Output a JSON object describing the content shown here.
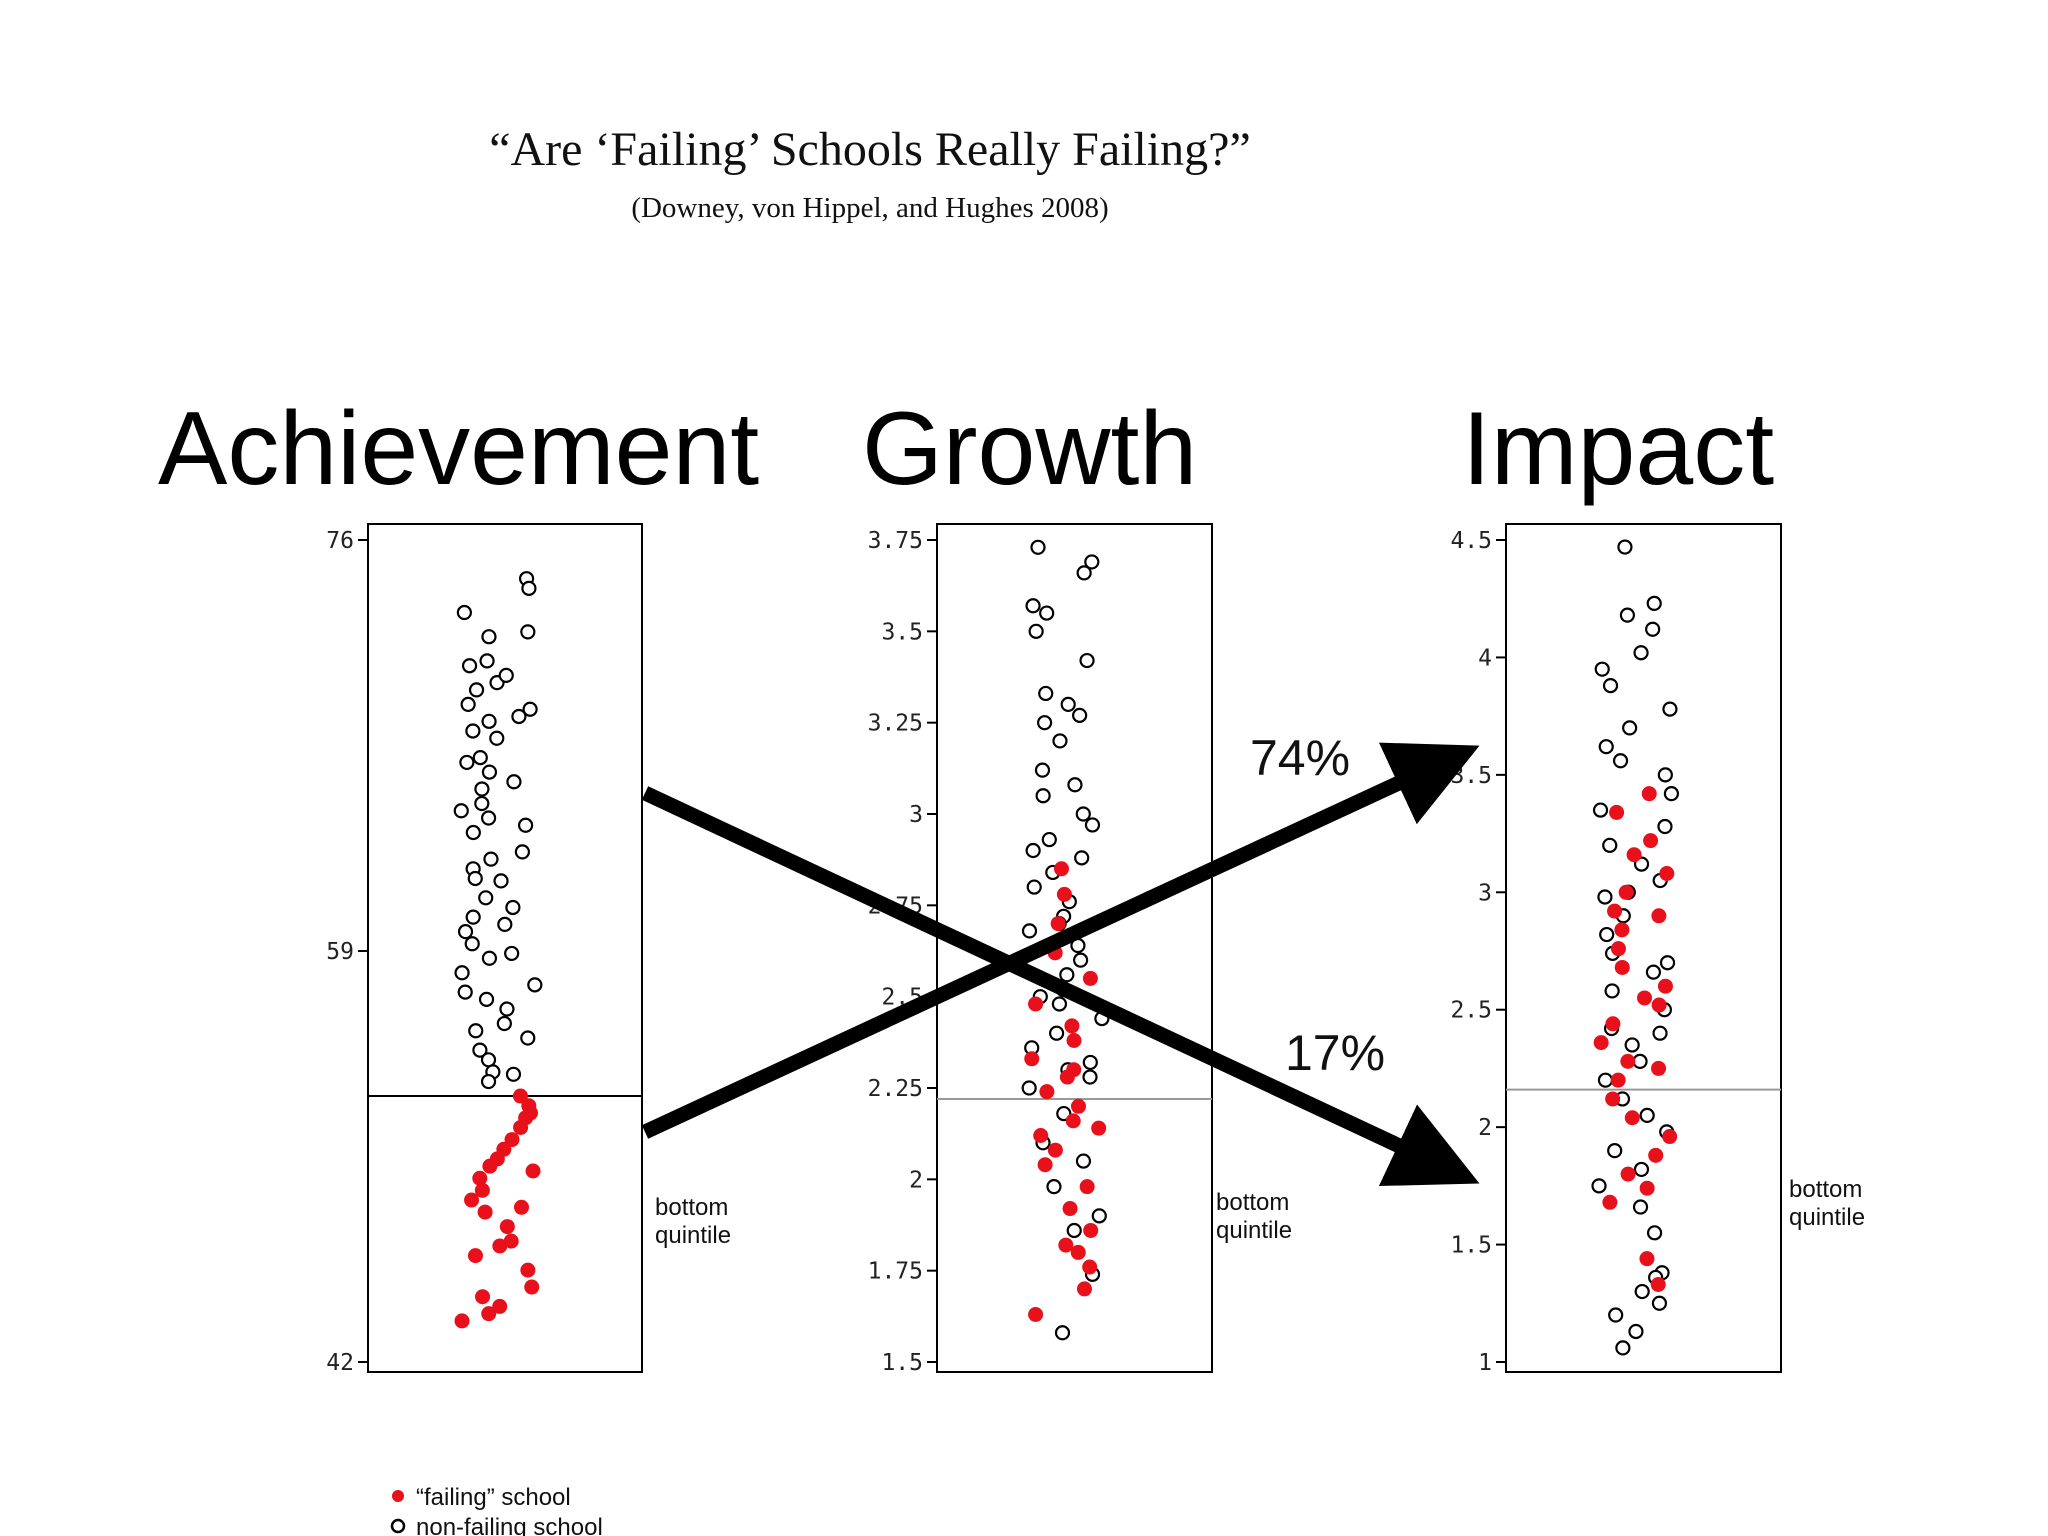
{
  "title": "“Are ‘Failing’ Schools Really Failing?”",
  "citation": "(Downey, von Hippel, and Hughes 2008)",
  "colors": {
    "failing": "#e8101a",
    "nonfailing": "#000000",
    "cutoff_black": "#000000",
    "cutoff_gray": "#999999"
  },
  "legend": {
    "failing": "“failing” school",
    "nonfailing": "non-failing school"
  },
  "arrows": {
    "top_label": "74%",
    "bottom_label": "17%"
  },
  "chart_data": [
    {
      "type": "scatter",
      "title": "Achievement",
      "ylim": [
        42,
        76
      ],
      "yticks": [
        42,
        59,
        76
      ],
      "ytick_labels": [
        "42",
        "59",
        "76"
      ],
      "cutoff": 53,
      "cutoff_label": [
        "bottom",
        "quintile"
      ],
      "series": [
        {
          "name": "non-failing school",
          "kind": "nonfailing",
          "y": [
            74.4,
            74.0,
            73.0,
            72.0,
            72.2,
            70.8,
            71.0,
            70.1,
            70.4,
            69.8,
            69.2,
            69.0,
            68.5,
            68.1,
            67.8,
            67.0,
            66.8,
            66.0,
            65.7,
            65.1,
            64.8,
            64.2,
            63.9,
            63.1,
            62.8,
            62.4,
            61.9,
            61.2,
            60.8,
            60.1,
            59.8,
            59.3,
            58.7,
            58.1,
            57.6,
            57.0,
            56.6,
            56.0,
            55.4,
            54.9,
            54.5,
            54.0,
            53.6,
            68.7,
            66.4,
            64.5,
            62.0,
            60.4,
            58.9,
            57.3,
            55.7,
            53.9
          ]
        },
        {
          "name": "“failing” school",
          "kind": "failing",
          "y": [
            53.0,
            52.6,
            52.1,
            51.7,
            51.2,
            50.8,
            50.4,
            49.9,
            49.6,
            49.1,
            48.7,
            48.2,
            47.6,
            47.0,
            46.4,
            45.8,
            45.1,
            44.7,
            44.3,
            44.0,
            43.7,
            52.3,
            50.1,
            48.4,
            46.8
          ]
        }
      ]
    },
    {
      "type": "scatter",
      "title": "Growth",
      "ylim": [
        1.5,
        3.75
      ],
      "yticks": [
        1.5,
        1.75,
        2,
        2.25,
        2.5,
        2.75,
        3,
        3.25,
        3.5,
        3.75
      ],
      "ytick_labels": [
        "1.5",
        "1.75",
        "2",
        "2.25",
        "2.5",
        "2.75",
        "3",
        "3.25",
        "3.5",
        "3.75"
      ],
      "cutoff": 2.22,
      "cutoff_label": [
        "bottom",
        "quintile"
      ],
      "series": [
        {
          "name": "non-failing school",
          "kind": "nonfailing",
          "y": [
            3.73,
            3.69,
            3.66,
            3.57,
            3.55,
            3.5,
            3.42,
            3.33,
            3.3,
            3.27,
            3.25,
            3.2,
            3.12,
            3.08,
            3.05,
            3.0,
            2.97,
            2.93,
            2.88,
            2.84,
            2.8,
            2.76,
            2.72,
            2.68,
            2.64,
            2.6,
            2.56,
            2.52,
            2.48,
            2.44,
            2.4,
            2.36,
            2.32,
            2.28,
            2.25,
            2.18,
            2.1,
            2.05,
            1.98,
            1.9,
            1.86,
            1.74,
            1.58,
            2.9,
            2.7,
            2.5,
            2.3
          ]
        },
        {
          "name": "“failing” school",
          "kind": "failing",
          "y": [
            2.85,
            2.78,
            2.7,
            2.62,
            2.55,
            2.48,
            2.42,
            2.38,
            2.33,
            2.28,
            2.24,
            2.2,
            2.16,
            2.12,
            2.08,
            2.04,
            1.98,
            1.92,
            1.86,
            1.82,
            1.8,
            1.76,
            1.7,
            1.63,
            2.3,
            2.14
          ]
        }
      ]
    },
    {
      "type": "scatter",
      "title": "Impact",
      "ylim": [
        1,
        4.5
      ],
      "yticks": [
        1,
        1.5,
        2,
        2.5,
        3,
        3.5,
        4,
        4.5
      ],
      "ytick_labels": [
        "1",
        "1.5",
        "2",
        "2.5",
        "3",
        "3.5",
        "4",
        "4.5"
      ],
      "cutoff": 2.16,
      "cutoff_label": [
        "bottom",
        "quintile"
      ],
      "series": [
        {
          "name": "non-failing school",
          "kind": "nonfailing",
          "y": [
            4.47,
            4.23,
            4.18,
            4.12,
            4.02,
            3.95,
            3.88,
            3.78,
            3.7,
            3.62,
            3.56,
            3.5,
            3.42,
            3.35,
            3.28,
            3.2,
            3.12,
            3.05,
            2.98,
            2.9,
            2.82,
            2.74,
            2.66,
            2.58,
            2.5,
            2.42,
            2.35,
            2.28,
            2.2,
            2.12,
            2.05,
            1.98,
            1.9,
            1.82,
            1.75,
            1.66,
            1.55,
            1.38,
            1.36,
            1.3,
            1.25,
            1.2,
            1.13,
            1.06,
            3.0,
            2.7,
            2.4
          ]
        },
        {
          "name": "“failing” school",
          "kind": "failing",
          "y": [
            3.42,
            3.34,
            3.22,
            3.16,
            3.08,
            3.0,
            2.92,
            2.84,
            2.76,
            2.68,
            2.6,
            2.52,
            2.44,
            2.36,
            2.28,
            2.2,
            2.12,
            2.04,
            1.96,
            1.88,
            1.8,
            1.74,
            1.68,
            1.44,
            1.33,
            2.9,
            2.55,
            2.25
          ]
        }
      ]
    }
  ]
}
